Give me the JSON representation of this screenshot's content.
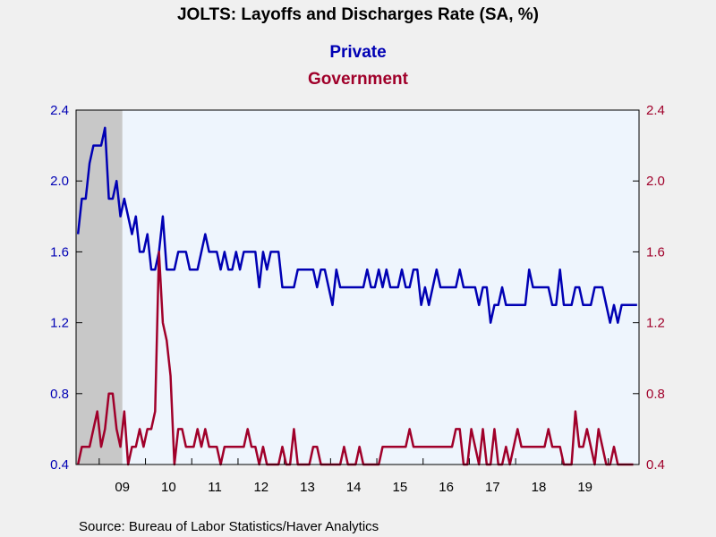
{
  "chart_data": {
    "type": "line",
    "title": "JOLTS: Layoffs and Discharges Rate (SA, %)",
    "legend": {
      "placement": "top-center"
    },
    "source": "Source:  Bureau of Labor Statistics/Haver Analytics",
    "x_start": "2008-07",
    "x_step": "month",
    "x_tick_labels": [
      "09",
      "10",
      "11",
      "12",
      "13",
      "14",
      "15",
      "16",
      "17",
      "18",
      "19"
    ],
    "y_left": {
      "min": 0.4,
      "max": 2.4,
      "ticks": [
        "0.4",
        "0.8",
        "1.2",
        "1.6",
        "2.0",
        "2.4"
      ],
      "color": "#0000b4"
    },
    "y_right": {
      "min": 0.4,
      "max": 2.4,
      "ticks": [
        "0.4",
        "0.8",
        "1.2",
        "1.6",
        "2.0",
        "2.4"
      ],
      "color": "#a0002a"
    },
    "recession": {
      "start": "2008-07",
      "end": "2009-06"
    },
    "series": [
      {
        "name": "Private",
        "color": "#0000b4",
        "values": [
          1.7,
          1.9,
          1.9,
          2.1,
          2.2,
          2.2,
          2.2,
          2.3,
          1.9,
          1.9,
          2.0,
          1.8,
          1.9,
          1.8,
          1.7,
          1.8,
          1.6,
          1.6,
          1.7,
          1.5,
          1.5,
          1.6,
          1.8,
          1.5,
          1.5,
          1.5,
          1.6,
          1.6,
          1.6,
          1.5,
          1.5,
          1.5,
          1.6,
          1.7,
          1.6,
          1.6,
          1.6,
          1.5,
          1.6,
          1.5,
          1.5,
          1.6,
          1.5,
          1.6,
          1.6,
          1.6,
          1.6,
          1.4,
          1.6,
          1.5,
          1.6,
          1.6,
          1.6,
          1.4,
          1.4,
          1.4,
          1.4,
          1.5,
          1.5,
          1.5,
          1.5,
          1.5,
          1.4,
          1.5,
          1.5,
          1.4,
          1.3,
          1.5,
          1.4,
          1.4,
          1.4,
          1.4,
          1.4,
          1.4,
          1.4,
          1.5,
          1.4,
          1.4,
          1.5,
          1.4,
          1.5,
          1.4,
          1.4,
          1.4,
          1.5,
          1.4,
          1.4,
          1.5,
          1.5,
          1.3,
          1.4,
          1.3,
          1.4,
          1.5,
          1.4,
          1.4,
          1.4,
          1.4,
          1.4,
          1.5,
          1.4,
          1.4,
          1.4,
          1.4,
          1.3,
          1.4,
          1.4,
          1.2,
          1.3,
          1.3,
          1.4,
          1.3,
          1.3,
          1.3,
          1.3,
          1.3,
          1.3,
          1.5,
          1.4,
          1.4,
          1.4,
          1.4,
          1.4,
          1.3,
          1.3,
          1.5,
          1.3,
          1.3,
          1.3,
          1.4,
          1.4,
          1.3,
          1.3,
          1.3,
          1.4,
          1.4,
          1.4,
          1.3,
          1.2,
          1.3,
          1.2,
          1.3,
          1.3,
          1.3,
          1.3,
          1.3
        ]
      },
      {
        "name": "Government",
        "color": "#a0002a",
        "values": [
          0.4,
          0.5,
          0.5,
          0.5,
          0.6,
          0.7,
          0.5,
          0.6,
          0.8,
          0.8,
          0.6,
          0.5,
          0.7,
          0.4,
          0.5,
          0.5,
          0.6,
          0.5,
          0.6,
          0.6,
          0.7,
          1.6,
          1.2,
          1.1,
          0.9,
          0.4,
          0.6,
          0.6,
          0.5,
          0.5,
          0.5,
          0.6,
          0.5,
          0.6,
          0.5,
          0.5,
          0.5,
          0.4,
          0.5,
          0.5,
          0.5,
          0.5,
          0.5,
          0.5,
          0.6,
          0.5,
          0.5,
          0.4,
          0.5,
          0.4,
          0.4,
          0.4,
          0.4,
          0.5,
          0.4,
          0.4,
          0.6,
          0.4,
          0.4,
          0.4,
          0.4,
          0.5,
          0.5,
          0.4,
          0.4,
          0.4,
          0.4,
          0.4,
          0.4,
          0.5,
          0.4,
          0.4,
          0.4,
          0.5,
          0.4,
          0.4,
          0.4,
          0.4,
          0.4,
          0.5,
          0.5,
          0.5,
          0.5,
          0.5,
          0.5,
          0.5,
          0.6,
          0.5,
          0.5,
          0.5,
          0.5,
          0.5,
          0.5,
          0.5,
          0.5,
          0.5,
          0.5,
          0.5,
          0.6,
          0.6,
          0.4,
          0.4,
          0.6,
          0.5,
          0.4,
          0.6,
          0.4,
          0.4,
          0.6,
          0.4,
          0.4,
          0.5,
          0.4,
          0.5,
          0.6,
          0.5,
          0.5,
          0.5,
          0.5,
          0.5,
          0.5,
          0.5,
          0.6,
          0.5,
          0.5,
          0.5,
          0.4,
          0.4,
          0.4,
          0.7,
          0.5,
          0.5,
          0.6,
          0.5,
          0.4,
          0.6,
          0.5,
          0.4,
          0.4,
          0.5,
          0.4,
          0.4,
          0.4,
          0.4,
          0.4
        ]
      }
    ]
  }
}
